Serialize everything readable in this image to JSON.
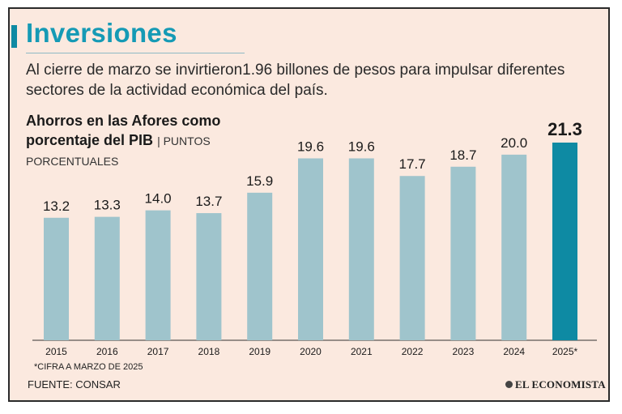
{
  "header": {
    "title": "Inversiones",
    "subtitle": "Al cierre de marzo se invirtieron1.96 billones de pesos para impulsar diferentes sectores de la actividad económica del país."
  },
  "chart_heading": {
    "title": "Ahorros en las Afores como porcentaje del PIB",
    "separator": "|",
    "units": "PUNTOS PORCENTUALES"
  },
  "colors": {
    "background": "#fbe9df",
    "bar": "#9fc4cc",
    "bar_highlight": "#0e8aa3",
    "title": "#159ab5"
  },
  "chart_data": {
    "type": "bar",
    "title": "Ahorros en las Afores como porcentaje del PIB",
    "ylabel": "PUNTOS PORCENTUALES",
    "xlabel": "",
    "categories": [
      "2015",
      "2016",
      "2017",
      "2018",
      "2019",
      "2020",
      "2021",
      "2022",
      "2023",
      "2024",
      "2025*"
    ],
    "values": [
      13.2,
      13.3,
      14.0,
      13.7,
      15.9,
      19.6,
      19.6,
      17.7,
      18.7,
      20.0,
      21.3
    ],
    "value_labels": [
      "13.2",
      "13.3",
      "14.0",
      "13.7",
      "15.9",
      "19.6",
      "19.6",
      "17.7",
      "18.7",
      "20.0",
      "21.3"
    ],
    "highlight_category": "2025*",
    "ylim": [
      0,
      21.3
    ],
    "grid": false,
    "legend": "none"
  },
  "footer": {
    "footnote": "*CIFRA A MARZO DE 2025",
    "source": "FUENTE: CONSAR",
    "brand": "EL ECONOMISTA"
  }
}
